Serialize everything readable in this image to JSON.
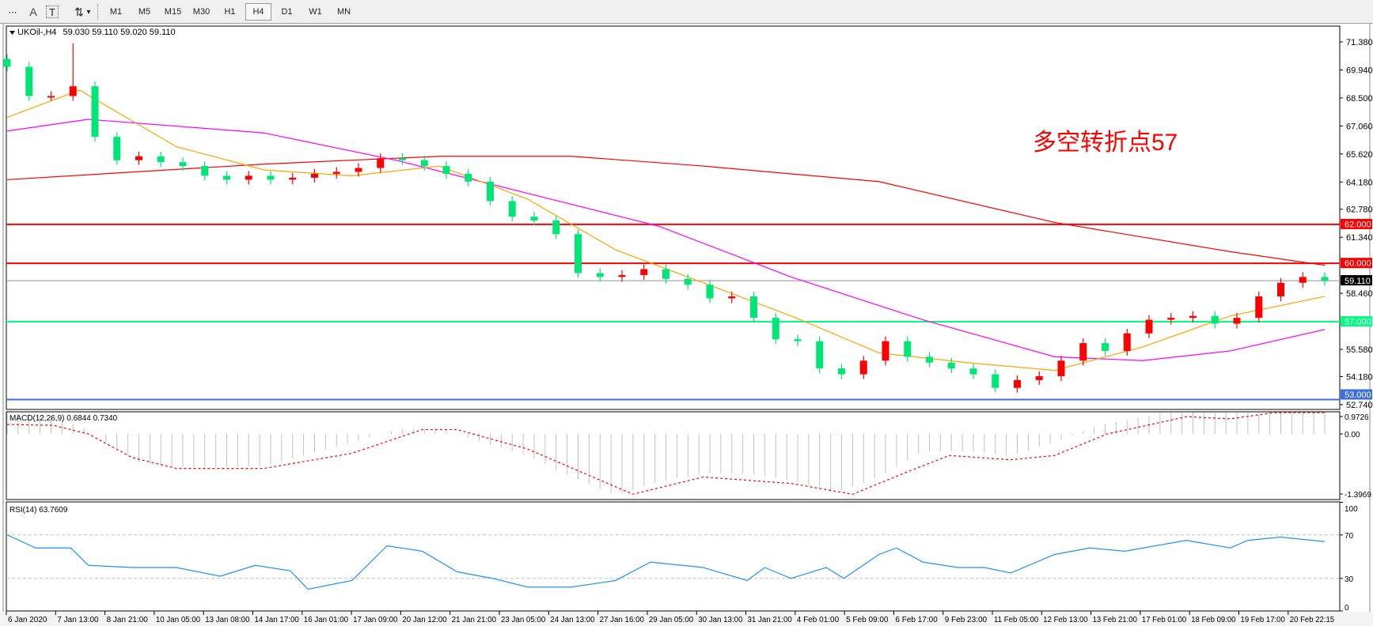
{
  "toolbar": {
    "tools": [
      {
        "name": "period-separator-icon",
        "glyph": "⋯"
      },
      {
        "name": "text-a-icon",
        "glyph": "A"
      },
      {
        "name": "text-label-icon",
        "glyph": "T"
      },
      {
        "name": "arrows-icon",
        "glyph": "⇅"
      }
    ],
    "dropdown_glyph": "▾",
    "timeframes": [
      "M1",
      "M5",
      "M15",
      "M30",
      "H1",
      "H4",
      "D1",
      "W1",
      "MN"
    ],
    "active_timeframe": "H4"
  },
  "chart_header": {
    "symbol_timeframe": "UKOil-,H4",
    "ohlc": "59.030 59.110 59.020 59.110"
  },
  "annotation": {
    "text": "多空转折点57",
    "color": "#ff0000"
  },
  "colors": {
    "bull_candle": "#ff0000",
    "bear_candle": "#00e676",
    "ma_fast": "#ffa500",
    "ma_mid": "#ff00ff",
    "ma_slow": "#ff0000",
    "macd_hist": "#c0c0c0",
    "macd_signal": "#ff0000",
    "rsi": "#1e90ff",
    "level_red": "#ff0000",
    "level_green": "#00ff7f",
    "level_blue": "#3c6ee0",
    "current_price": "#000000"
  },
  "chart_data": [
    {
      "type": "candlestick",
      "title": "UKOil-,H4",
      "ylim": [
        52.5,
        72.2
      ],
      "price_ticks": [
        "71.380",
        "69.940",
        "68.500",
        "67.060",
        "65.620",
        "64.180",
        "62.780",
        "61.340",
        "58.460",
        "55.580",
        "54.180",
        "52.740"
      ],
      "closes": [
        70.1,
        68.6,
        68.6,
        69.1,
        66.5,
        65.3,
        65.5,
        65.2,
        65.0,
        64.5,
        64.3,
        64.5,
        64.3,
        64.4,
        64.6,
        64.7,
        64.9,
        65.4,
        65.3,
        65.0,
        64.6,
        64.2,
        63.2,
        62.4,
        62.2,
        61.5,
        59.5,
        59.3,
        59.4,
        59.7,
        59.2,
        58.9,
        58.2,
        58.3,
        57.2,
        56.1,
        56.0,
        54.6,
        54.3,
        55.0,
        56.0,
        55.2,
        54.9,
        54.6,
        54.3,
        53.6,
        54.0,
        54.2,
        55.0,
        55.9,
        55.5,
        56.4,
        57.1,
        57.2,
        57.3,
        56.9,
        57.2,
        58.3,
        59.0,
        59.3,
        59.11
      ],
      "first_open": 70.5,
      "notable_high": {
        "bar": 3,
        "value": 71.3
      },
      "moving_averages": [
        {
          "role": "slow",
          "points": [
            [
              0,
              64.3
            ],
            [
              11.7,
              65.1
            ],
            [
              19.7,
              65.5
            ],
            [
              25.7,
              65.5
            ],
            [
              31.7,
              65.0
            ],
            [
              39.7,
              64.2
            ],
            [
              47.7,
              62.1
            ],
            [
              55.7,
              60.6
            ],
            [
              60,
              59.9
            ]
          ]
        },
        {
          "role": "mid",
          "points": [
            [
              0,
              66.8
            ],
            [
              3.7,
              67.4
            ],
            [
              11.7,
              66.7
            ],
            [
              17.7,
              65.3
            ],
            [
              23.7,
              63.6
            ],
            [
              29.7,
              61.9
            ],
            [
              35.7,
              59.3
            ],
            [
              41.7,
              57.1
            ],
            [
              47.7,
              55.2
            ],
            [
              51.7,
              55.0
            ],
            [
              55.7,
              55.5
            ],
            [
              60,
              56.6
            ]
          ]
        },
        {
          "role": "fast",
          "points": [
            [
              0,
              67.5
            ],
            [
              3.3,
              68.9
            ],
            [
              7.7,
              66.0
            ],
            [
              11.7,
              64.8
            ],
            [
              15.7,
              64.5
            ],
            [
              19.7,
              65.0
            ],
            [
              23.7,
              63.3
            ],
            [
              27.7,
              60.7
            ],
            [
              31.7,
              59.0
            ],
            [
              35.7,
              57.3
            ],
            [
              39.7,
              55.4
            ],
            [
              43.7,
              54.9
            ],
            [
              47.7,
              54.5
            ],
            [
              51.7,
              55.7
            ],
            [
              55.7,
              57.3
            ],
            [
              60,
              58.3
            ]
          ]
        }
      ],
      "levels": [
        {
          "value": 62,
          "label": "62.000",
          "color_key": "level_red"
        },
        {
          "value": 60,
          "label": "60.000",
          "color_key": "level_red"
        },
        {
          "value": 57,
          "label": "57.000",
          "color_key": "level_green"
        },
        {
          "value": 53,
          "label": "53.000",
          "color_key": "level_blue"
        }
      ],
      "current_price": {
        "value": 59.11,
        "label": "59.110"
      },
      "x_tick_labels": [
        "6 Jan 2020",
        "7 Jan 13:00",
        "8 Jan 21:00",
        "10 Jan 05:00",
        "13 Jan 08:00",
        "14 Jan 17:00",
        "16 Jan 01:00",
        "17 Jan 09:00",
        "20 Jan 12:00",
        "21 Jan 21:00",
        "23 Jan 05:00",
        "24 Jan 13:00",
        "27 Jan 16:00",
        "29 Jan 05:00",
        "30 Jan 13:00",
        "31 Jan 21:00",
        "4 Feb 01:00",
        "5 Feb 09:00",
        "6 Feb 17:00",
        "9 Feb 23:00",
        "11 Feb 05:00",
        "12 Feb 13:00",
        "13 Feb 21:00",
        "17 Feb 01:00",
        "18 Feb 09:00",
        "19 Feb 17:00",
        "20 Feb 22:15"
      ]
    },
    {
      "type": "bar+line",
      "title": "MACD(12,26,9) 0.6844 0.7340",
      "y_ticks": [
        "0.9726",
        "0.00",
        "-1.3969"
      ],
      "histogram": [
        [
          0,
          0.5
        ],
        [
          2.1,
          0.4
        ],
        [
          3.7,
          0.1
        ],
        [
          4.9,
          -0.3
        ],
        [
          6.1,
          -0.67
        ],
        [
          7.7,
          -0.78
        ],
        [
          11.7,
          -0.75
        ],
        [
          15.7,
          -0.2
        ],
        [
          17.7,
          0.1
        ],
        [
          19.7,
          0.14
        ],
        [
          21.7,
          -0.2
        ],
        [
          23.7,
          -0.5
        ],
        [
          25.7,
          -1.0
        ],
        [
          27.7,
          -1.43
        ],
        [
          29.7,
          -1.1
        ],
        [
          31.7,
          -0.92
        ],
        [
          33.7,
          -0.92
        ],
        [
          35.7,
          -1.08
        ],
        [
          37.7,
          -1.37
        ],
        [
          39.7,
          -1.0
        ],
        [
          41.7,
          -0.4
        ],
        [
          43.7,
          -0.4
        ],
        [
          45.7,
          -0.5
        ],
        [
          47.7,
          -0.2
        ],
        [
          49.7,
          0.2
        ],
        [
          51.7,
          0.4
        ],
        [
          53.7,
          0.6
        ],
        [
          55.7,
          0.5
        ],
        [
          57.7,
          0.6
        ],
        [
          60,
          0.67
        ]
      ],
      "signal": [
        [
          0,
          0.22
        ],
        [
          2.1,
          0.2
        ],
        [
          3.7,
          0.0
        ],
        [
          5.7,
          -0.55
        ],
        [
          7.7,
          -0.8
        ],
        [
          11.7,
          -0.8
        ],
        [
          15.7,
          -0.45
        ],
        [
          18.9,
          0.1
        ],
        [
          20.5,
          0.1
        ],
        [
          23.7,
          -0.35
        ],
        [
          28.5,
          -1.4
        ],
        [
          31.7,
          -1.0
        ],
        [
          35.7,
          -1.15
        ],
        [
          38.5,
          -1.4
        ],
        [
          40.9,
          -0.9
        ],
        [
          42.9,
          -0.5
        ],
        [
          45.7,
          -0.6
        ],
        [
          47.7,
          -0.5
        ],
        [
          50.1,
          0.0
        ],
        [
          53.7,
          0.4
        ],
        [
          55.7,
          0.35
        ],
        [
          57.7,
          0.5
        ],
        [
          60,
          0.6
        ]
      ]
    },
    {
      "type": "line",
      "title": "RSI(14) 63.7609",
      "ylim": [
        0,
        100
      ],
      "y_ticks": [
        "100",
        "70",
        "30",
        "0"
      ],
      "levels": [
        70,
        30
      ],
      "values": [
        [
          0,
          70
        ],
        [
          1.3,
          58
        ],
        [
          2.9,
          58
        ],
        [
          3.7,
          42
        ],
        [
          5.7,
          40
        ],
        [
          7.7,
          40
        ],
        [
          9.7,
          32
        ],
        [
          11.3,
          42
        ],
        [
          12.9,
          37
        ],
        [
          13.7,
          20
        ],
        [
          15.7,
          28
        ],
        [
          17.3,
          60
        ],
        [
          18.9,
          55
        ],
        [
          20.5,
          36
        ],
        [
          22.1,
          30
        ],
        [
          23.7,
          22
        ],
        [
          25.7,
          22
        ],
        [
          27.7,
          28
        ],
        [
          29.3,
          45
        ],
        [
          31.7,
          40
        ],
        [
          33.7,
          28
        ],
        [
          34.5,
          40
        ],
        [
          35.7,
          30
        ],
        [
          37.3,
          40
        ],
        [
          38.1,
          30
        ],
        [
          39.7,
          52
        ],
        [
          40.5,
          58
        ],
        [
          41.7,
          45
        ],
        [
          43.3,
          40
        ],
        [
          44.5,
          40
        ],
        [
          45.7,
          35
        ],
        [
          47.7,
          52
        ],
        [
          49.3,
          58
        ],
        [
          50.9,
          55
        ],
        [
          53.7,
          65
        ],
        [
          55.7,
          58
        ],
        [
          56.5,
          65
        ],
        [
          58,
          68
        ],
        [
          60,
          63.8
        ]
      ]
    }
  ]
}
